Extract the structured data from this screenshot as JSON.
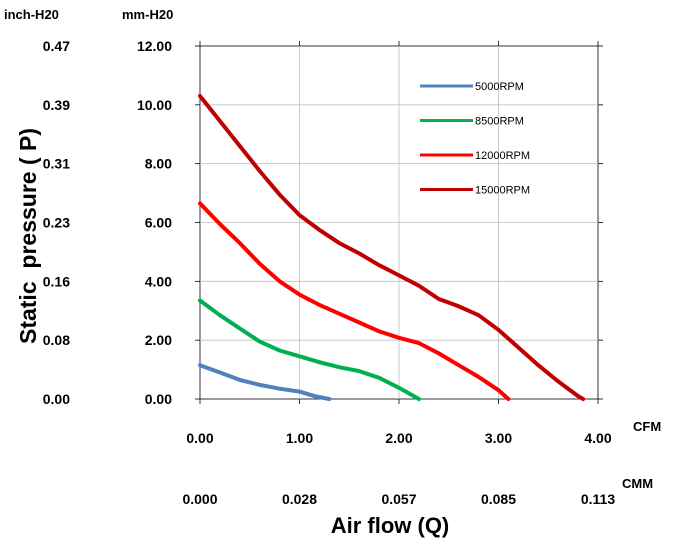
{
  "chart_data": {
    "type": "line",
    "units": {
      "y_left_outer": "inch-H20",
      "y_left_inner": "mm-H20",
      "x_primary": "CFM",
      "x_secondary": "CMM"
    },
    "ylabel": "Static  pressure ( P)",
    "xlabel": "Air flow (Q)",
    "xlim": [
      0,
      4
    ],
    "ylim": [
      0,
      12
    ],
    "grid": true,
    "legend_position": "top-right",
    "y_ticks_mm": [
      "0.00",
      "2.00",
      "4.00",
      "6.00",
      "8.00",
      "10.00",
      "12.00"
    ],
    "y_ticks_inch": [
      "0.00",
      "0.08",
      "0.16",
      "0.23",
      "0.31",
      "0.39",
      "0.47"
    ],
    "x_ticks_cfm": [
      "0.00",
      "1.00",
      "2.00",
      "3.00",
      "4.00"
    ],
    "x_ticks_cmm": [
      "0.000",
      "0.028",
      "0.057",
      "0.085",
      "0.113"
    ],
    "series": [
      {
        "name": "5000RPM",
        "color": "#4f81bd",
        "points": [
          [
            0,
            1.15
          ],
          [
            0.2,
            0.9
          ],
          [
            0.4,
            0.65
          ],
          [
            0.6,
            0.48
          ],
          [
            0.8,
            0.35
          ],
          [
            1.0,
            0.25
          ],
          [
            1.15,
            0.1
          ],
          [
            1.3,
            0.0
          ]
        ]
      },
      {
        "name": "8500RPM",
        "color": "#00b050",
        "points": [
          [
            0,
            3.35
          ],
          [
            0.2,
            2.85
          ],
          [
            0.4,
            2.4
          ],
          [
            0.6,
            1.95
          ],
          [
            0.8,
            1.65
          ],
          [
            1.0,
            1.45
          ],
          [
            1.2,
            1.25
          ],
          [
            1.4,
            1.08
          ],
          [
            1.6,
            0.95
          ],
          [
            1.8,
            0.72
          ],
          [
            2.0,
            0.38
          ],
          [
            2.2,
            0.0
          ]
        ]
      },
      {
        "name": "12000RPM",
        "color": "#ff0000",
        "points": [
          [
            0,
            6.65
          ],
          [
            0.2,
            5.95
          ],
          [
            0.4,
            5.3
          ],
          [
            0.6,
            4.6
          ],
          [
            0.8,
            4.0
          ],
          [
            1.0,
            3.55
          ],
          [
            1.2,
            3.2
          ],
          [
            1.4,
            2.9
          ],
          [
            1.6,
            2.6
          ],
          [
            1.8,
            2.3
          ],
          [
            2.0,
            2.08
          ],
          [
            2.2,
            1.9
          ],
          [
            2.4,
            1.55
          ],
          [
            2.6,
            1.15
          ],
          [
            2.8,
            0.75
          ],
          [
            3.0,
            0.3
          ],
          [
            3.1,
            0.0
          ]
        ]
      },
      {
        "name": "15000RPM",
        "color": "#c00000",
        "points": [
          [
            0,
            10.3
          ],
          [
            0.2,
            9.45
          ],
          [
            0.4,
            8.6
          ],
          [
            0.6,
            7.75
          ],
          [
            0.8,
            6.95
          ],
          [
            1.0,
            6.25
          ],
          [
            1.2,
            5.75
          ],
          [
            1.4,
            5.3
          ],
          [
            1.6,
            4.95
          ],
          [
            1.8,
            4.55
          ],
          [
            2.0,
            4.2
          ],
          [
            2.2,
            3.85
          ],
          [
            2.4,
            3.4
          ],
          [
            2.6,
            3.15
          ],
          [
            2.8,
            2.85
          ],
          [
            3.0,
            2.35
          ],
          [
            3.2,
            1.75
          ],
          [
            3.4,
            1.15
          ],
          [
            3.6,
            0.6
          ],
          [
            3.8,
            0.1
          ],
          [
            3.85,
            0.0
          ]
        ]
      }
    ]
  }
}
